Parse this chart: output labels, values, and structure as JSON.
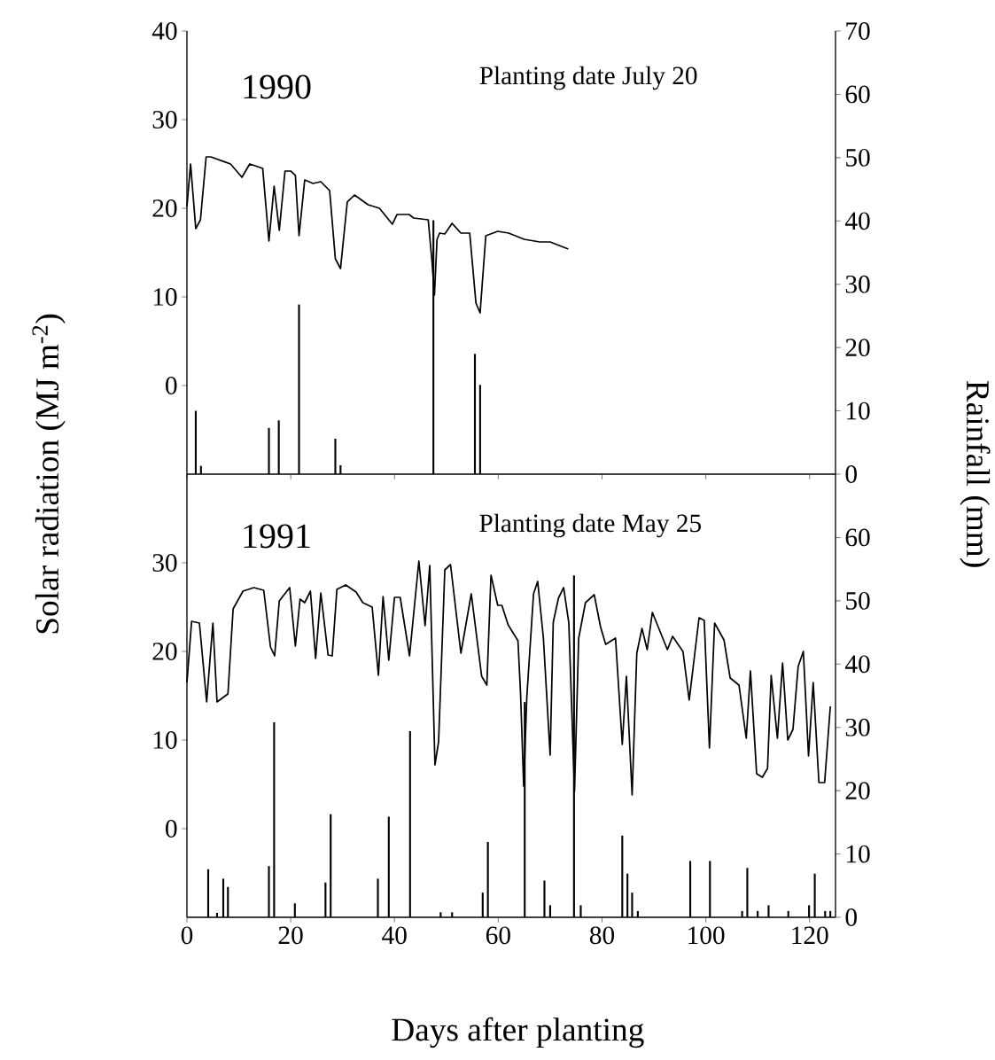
{
  "chart_data": [
    {
      "type": "line",
      "annotations": [
        "1990",
        "Planting date July 20"
      ],
      "ylabel": "Solar radiation (MJ m$^{-2}$)",
      "y2label": "Rainfall (mm)",
      "xlim": [
        0,
        125
      ],
      "xticks": [
        0,
        20,
        40,
        60,
        80,
        100,
        120
      ],
      "ylim": [
        -10,
        40
      ],
      "yticks": [
        0,
        10,
        20,
        30,
        40
      ],
      "y2lim": [
        0,
        70
      ],
      "y2ticks": [
        0,
        10,
        20,
        30,
        40,
        50,
        60,
        70
      ],
      "tick_labels": "y",
      "marker": "none",
      "line_style": "solid",
      "series": [
        {
          "color": "#000000",
          "x": [
            0,
            0.7,
            1.7,
            2.6,
            3.7,
            4.6,
            8.4,
            10.6,
            12.1,
            14.6,
            15.8,
            16.8,
            17.8,
            18.9,
            20,
            20.9,
            21.6,
            22.7,
            24.3,
            25.8,
            27.5,
            28.6,
            29.6,
            30.9,
            32.3,
            34.9,
            37.1,
            39.6,
            40.5,
            42.8,
            43.7,
            46.5,
            47.2,
            47.7,
            48.2,
            48.7,
            49.7,
            51.1,
            52.8,
            54.5,
            55.7,
            56.5,
            57.6,
            59.9,
            62,
            65,
            68,
            70,
            73.5
          ],
          "values": [
            20.2,
            25,
            17.7,
            18.7,
            25.8,
            25.8,
            25,
            23.5,
            25,
            24.5,
            16.3,
            22.5,
            17.5,
            24.2,
            24.2,
            23.7,
            16.9,
            23.2,
            22.8,
            23,
            22,
            14.3,
            13.2,
            20.7,
            21.5,
            20.4,
            20,
            18.2,
            19.3,
            19.3,
            18.9,
            18.7,
            14.2,
            10.2,
            16.5,
            17.2,
            17.1,
            18.3,
            17.2,
            17.2,
            9.3,
            8.2,
            16.9,
            17.4,
            17.2,
            16.5,
            16.2,
            16.2,
            15.4
          ]
        },
        {
          "type": "bar",
          "axis": "y2",
          "color": "#000000",
          "x": [
            1.7,
            2.7,
            15.8,
            17.7,
            21.6,
            28.6,
            29.6,
            47.5,
            55.5,
            56.5
          ],
          "values": [
            10,
            1.3,
            7.3,
            8.5,
            26.8,
            5.6,
            1.4,
            40.1,
            19,
            14.1
          ]
        }
      ]
    },
    {
      "type": "line",
      "annotations": [
        "1991",
        "Planting date May 25"
      ],
      "xlabel": "Days after planting",
      "xlim": [
        0,
        125
      ],
      "xticks": [
        0,
        20,
        40,
        60,
        80,
        100,
        120
      ],
      "ylim": [
        -10,
        40
      ],
      "yticks": [
        0,
        10,
        20,
        30
      ],
      "y2lim": [
        0,
        70
      ],
      "y2ticks": [
        0,
        10,
        20,
        30,
        40,
        50,
        60
      ],
      "marker": "none",
      "line_style": "solid",
      "series": [
        {
          "color": "#000000",
          "x": [
            0,
            0.9,
            2.4,
            3.8,
            5,
            5.8,
            7.9,
            8.9,
            10.8,
            12.9,
            14.8,
            16.1,
            16.9,
            17.8,
            19.8,
            20.9,
            21.8,
            22.7,
            23.8,
            24.8,
            25.8,
            27.2,
            28,
            28.9,
            30.6,
            32.6,
            33.9,
            35.7,
            36.9,
            37.8,
            38.9,
            40,
            41.1,
            42.9,
            44.7,
            45.9,
            46.8,
            47.8,
            48.5,
            49.7,
            50.8,
            52.8,
            54.8,
            56.8,
            57.8,
            58.6,
            59.9,
            60.7,
            61.9,
            63.8,
            64.3,
            64.9,
            65.5,
            66.8,
            67.6,
            68.7,
            70,
            70.6,
            71.6,
            72.6,
            73.6,
            74.7,
            75.5,
            76.8,
            78.5,
            79.7,
            80.7,
            82.6,
            83.9,
            84.7,
            85.8,
            86.7,
            87.7,
            88.7,
            89.7,
            92.6,
            93.6,
            95.6,
            96.8,
            98.7,
            99.7,
            100.7,
            101.7,
            103.5,
            104.7,
            106.4,
            107.8,
            108.6,
            109.8,
            110.9,
            111.9,
            112.6,
            113.8,
            114.8,
            115.8,
            116.8,
            117.8,
            118.8,
            119.8,
            120.7,
            121.8,
            122.9,
            124
          ],
          "values": [
            16.5,
            23.4,
            23.2,
            14.3,
            23.2,
            14.3,
            15.2,
            24.8,
            26.8,
            27.2,
            26.9,
            20.5,
            19.5,
            25.7,
            27.2,
            20.6,
            25.9,
            25.5,
            26.8,
            19.2,
            26.6,
            19.6,
            19.5,
            27,
            27.5,
            26.7,
            25.5,
            25,
            17.3,
            26.2,
            19,
            26.1,
            26.1,
            19.5,
            30.2,
            22.9,
            29.7,
            7.2,
            9.8,
            29.2,
            29.8,
            19.8,
            26.5,
            17.2,
            16.2,
            28.6,
            25.2,
            25.2,
            23,
            21.2,
            15.2,
            4.8,
            14.8,
            26.5,
            27.9,
            21.5,
            8.3,
            23.3,
            26,
            27.2,
            23.2,
            4.2,
            21.5,
            25.5,
            26.4,
            22.8,
            20.8,
            21.5,
            9.5,
            17.2,
            3.8,
            19.8,
            22.6,
            20.2,
            24.4,
            20.2,
            21.7,
            20,
            14.5,
            23.8,
            23.5,
            9.1,
            23.2,
            21.3,
            17,
            16.2,
            10.2,
            17.8,
            6.2,
            5.8,
            6.8,
            17.3,
            10.2,
            18.7,
            10,
            11.2,
            18.3,
            20,
            8.2,
            16.5,
            5.2,
            5.2,
            13.8
          ]
        },
        {
          "type": "bar",
          "axis": "y2",
          "color": "#000000",
          "x": [
            4.1,
            5.8,
            7,
            7.9,
            15.8,
            16.8,
            20.8,
            26.7,
            27.7,
            36.8,
            38.9,
            43,
            48.9,
            51.1,
            57,
            58,
            65.1,
            68.9,
            70,
            74.6,
            75.9,
            83.9,
            84.9,
            85.8,
            86.9,
            97,
            100.8,
            107,
            108,
            110,
            112.1,
            115.9,
            119.9,
            121,
            123,
            124
          ],
          "values": [
            7.6,
            0.7,
            6.1,
            4.8,
            8.1,
            30.8,
            2.2,
            5.5,
            16.3,
            6.1,
            15.9,
            29.4,
            0.8,
            0.8,
            3.9,
            11.9,
            34,
            5.8,
            1.9,
            54,
            1.9,
            12.9,
            6.9,
            3.9,
            1,
            8.9,
            8.9,
            1,
            7.8,
            1,
            1.9,
            1,
            1.9,
            6.9,
            1,
            1
          ]
        }
      ]
    }
  ]
}
